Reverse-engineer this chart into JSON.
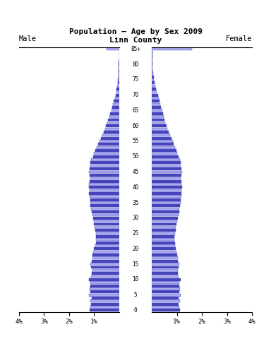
{
  "title1": "Population — Age by Sex 2009",
  "title2": "Linn County",
  "male_label": "Male",
  "female_label": "Female",
  "bar_color_filled": "#4444bb",
  "bar_color_outline": "#aaaaee",
  "xlim": 4.0,
  "bg_color": "#ffffff",
  "ages": [
    0,
    1,
    2,
    3,
    4,
    5,
    6,
    7,
    8,
    9,
    10,
    11,
    12,
    13,
    14,
    15,
    16,
    17,
    18,
    19,
    20,
    21,
    22,
    23,
    24,
    25,
    26,
    27,
    28,
    29,
    30,
    31,
    32,
    33,
    34,
    35,
    36,
    37,
    38,
    39,
    40,
    41,
    42,
    43,
    44,
    45,
    46,
    47,
    48,
    49,
    50,
    51,
    52,
    53,
    54,
    55,
    56,
    57,
    58,
    59,
    60,
    61,
    62,
    63,
    64,
    65,
    66,
    67,
    68,
    69,
    70,
    71,
    72,
    73,
    74,
    75,
    76,
    77,
    78,
    79,
    80,
    81,
    82,
    83,
    84,
    85
  ],
  "male_pct": [
    1.18,
    1.14,
    1.12,
    1.16,
    1.1,
    1.2,
    1.15,
    1.18,
    1.14,
    1.16,
    1.22,
    1.12,
    1.1,
    1.08,
    1.12,
    1.15,
    1.1,
    1.08,
    1.06,
    1.04,
    1.0,
    0.96,
    0.94,
    0.93,
    0.92,
    0.94,
    0.96,
    0.98,
    1.0,
    1.02,
    1.05,
    1.08,
    1.1,
    1.12,
    1.14,
    1.15,
    1.16,
    1.18,
    1.2,
    1.18,
    1.22,
    1.2,
    1.18,
    1.16,
    1.18,
    1.2,
    1.18,
    1.16,
    1.14,
    1.12,
    1.05,
    1.0,
    0.96,
    0.9,
    0.85,
    0.8,
    0.74,
    0.68,
    0.62,
    0.56,
    0.52,
    0.48,
    0.44,
    0.4,
    0.36,
    0.32,
    0.28,
    0.25,
    0.22,
    0.18,
    0.15,
    0.12,
    0.1,
    0.08,
    0.06,
    0.05,
    0.04,
    0.03,
    0.02,
    0.02,
    0.02,
    0.02,
    0.01,
    0.01,
    0.01,
    0.5
  ],
  "female_pct": [
    1.12,
    1.1,
    1.08,
    1.12,
    1.06,
    1.15,
    1.1,
    1.13,
    1.09,
    1.11,
    1.16,
    1.07,
    1.05,
    1.03,
    1.07,
    1.1,
    1.05,
    1.03,
    1.01,
    0.99,
    0.96,
    0.93,
    0.92,
    0.91,
    0.9,
    0.93,
    0.95,
    0.97,
    0.99,
    1.01,
    1.04,
    1.07,
    1.09,
    1.11,
    1.13,
    1.14,
    1.15,
    1.17,
    1.19,
    1.17,
    1.21,
    1.19,
    1.17,
    1.15,
    1.17,
    1.2,
    1.18,
    1.16,
    1.14,
    1.12,
    1.06,
    1.02,
    0.98,
    0.93,
    0.88,
    0.84,
    0.78,
    0.72,
    0.67,
    0.62,
    0.58,
    0.54,
    0.51,
    0.47,
    0.44,
    0.41,
    0.37,
    0.34,
    0.31,
    0.27,
    0.24,
    0.2,
    0.17,
    0.14,
    0.11,
    0.09,
    0.07,
    0.06,
    0.04,
    0.03,
    0.03,
    0.03,
    0.02,
    0.02,
    0.02,
    1.6
  ]
}
